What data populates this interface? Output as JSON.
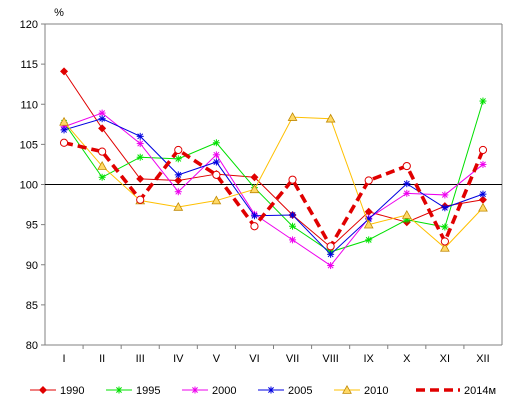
{
  "chart_data": {
    "type": "line",
    "ylabel": "%",
    "ylim": [
      80,
      120
    ],
    "yticks": [
      80,
      85,
      90,
      95,
      100,
      105,
      110,
      115,
      120
    ],
    "reference_line": 100,
    "categories": [
      "I",
      "II",
      "III",
      "IV",
      "V",
      "VI",
      "VII",
      "VIII",
      "IX",
      "X",
      "XI",
      "XII"
    ],
    "legend_position": "bottom",
    "grid": false,
    "series": [
      {
        "name": "1990",
        "color": "#e00000",
        "marker": "diamond",
        "values": [
          114.1,
          107.0,
          100.7,
          100.5,
          101.3,
          100.9,
          96.2,
          92.2,
          96.6,
          95.3,
          97.3,
          98.1
        ]
      },
      {
        "name": "1995",
        "color": "#00e000",
        "marker": "star",
        "values": [
          107.7,
          100.9,
          103.4,
          103.2,
          105.2,
          99.6,
          94.8,
          91.6,
          93.1,
          95.6,
          94.7,
          110.4
        ]
      },
      {
        "name": "2000",
        "color": "#ee00ee",
        "marker": "star",
        "values": [
          107.2,
          108.9,
          105.1,
          99.1,
          103.7,
          96.3,
          93.1,
          89.9,
          95.8,
          98.9,
          98.7,
          102.5
        ]
      },
      {
        "name": "2005",
        "color": "#0000e0",
        "marker": "star",
        "values": [
          106.8,
          108.2,
          106.0,
          101.2,
          102.8,
          96.1,
          96.2,
          91.3,
          95.7,
          100.1,
          97.1,
          98.8
        ]
      },
      {
        "name": "2010",
        "color": "#ffc000",
        "marker": "triangle",
        "values": [
          107.8,
          102.3,
          98.0,
          97.2,
          98.0,
          99.4,
          108.4,
          108.2,
          95.0,
          96.2,
          92.1,
          97.1
        ]
      },
      {
        "name": "2014м",
        "color": "#e00000",
        "marker": "circle",
        "dashed": true,
        "values": [
          105.2,
          104.1,
          98.1,
          104.3,
          101.2,
          94.8,
          100.6,
          92.3,
          100.5,
          102.3,
          92.9,
          104.3
        ]
      }
    ]
  }
}
